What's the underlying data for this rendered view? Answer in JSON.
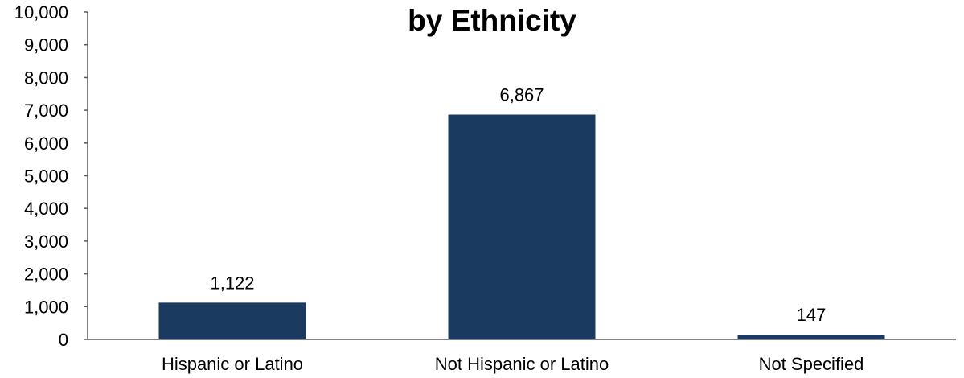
{
  "chart_data": {
    "type": "bar",
    "title": "by Ethnicity",
    "categories": [
      "Hispanic or Latino",
      "Not Hispanic or Latino",
      "Not Specified"
    ],
    "values": [
      1122,
      6867,
      147
    ],
    "data_labels": [
      "1,122",
      "6,867",
      "147"
    ],
    "y_ticks": [
      "0",
      "1,000",
      "2,000",
      "3,000",
      "4,000",
      "5,000",
      "6,000",
      "7,000",
      "8,000",
      "9,000",
      "10,000"
    ],
    "ylim": [
      0,
      10000
    ],
    "xlabel": "",
    "ylabel": "",
    "grid": false,
    "bar_color": "#1b3a60",
    "axis_color": "#595959"
  }
}
